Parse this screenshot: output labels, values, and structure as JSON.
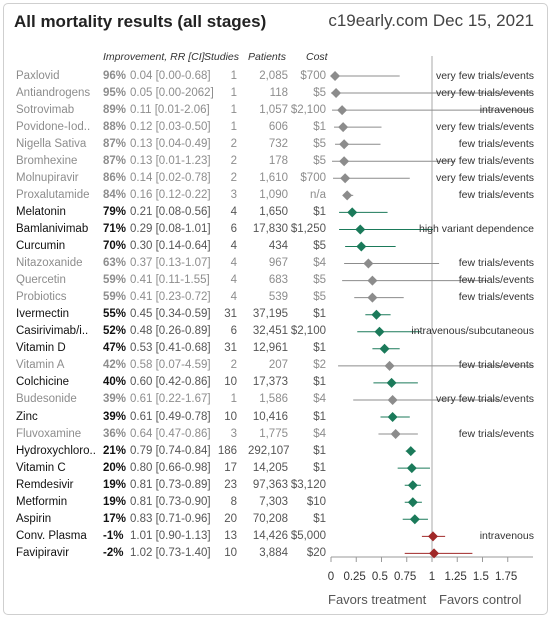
{
  "header": {
    "title": "All mortality results (all stages)",
    "source": "c19early.com Dec 15, 2021"
  },
  "columns": {
    "improvement": "Improvement, RR [CI]",
    "studies": "Studies",
    "patients": "Patients",
    "cost": "Cost"
  },
  "footer": {
    "favors_treatment": "Favors treatment",
    "favors_control": "Favors control"
  },
  "chart_data": {
    "type": "forest",
    "xlim": [
      0,
      1.75
    ],
    "xticks": [
      "0",
      "0.25",
      "0.5",
      "0.75",
      "1",
      "1.25",
      "1.5",
      "1.75"
    ],
    "reference_line": 1,
    "colors": {
      "muted": "#8c8c8c",
      "positive": "#1b7a5a",
      "negative": "#a02828"
    },
    "rows": [
      {
        "name": "Paxlovid",
        "improvement": "96%",
        "rr_text": "0.04 [0.00-0.68]",
        "studies": "1",
        "patients": "2,085",
        "cost": "$700",
        "rr": 0.04,
        "lo": 0.0,
        "hi": 0.68,
        "style": "muted",
        "note": "very few trials/events"
      },
      {
        "name": "Antiandrogens",
        "improvement": "95%",
        "rr_text": "0.05 [0.00-2062]",
        "studies": "1",
        "patients": "118",
        "cost": "$5",
        "rr": 0.05,
        "lo": 0.0,
        "hi": 2062,
        "style": "muted",
        "note": "very few trials/events"
      },
      {
        "name": "Sotrovimab",
        "improvement": "89%",
        "rr_text": "0.11 [0.01-2.06]",
        "studies": "1",
        "patients": "1,057",
        "cost": "$2,100",
        "rr": 0.11,
        "lo": 0.01,
        "hi": 2.06,
        "style": "muted",
        "note": "intravenous"
      },
      {
        "name": "Povidone-Iod..",
        "improvement": "88%",
        "rr_text": "0.12 [0.03-0.50]",
        "studies": "1",
        "patients": "606",
        "cost": "$1",
        "rr": 0.12,
        "lo": 0.03,
        "hi": 0.5,
        "style": "muted",
        "note": "very few trials/events"
      },
      {
        "name": "Nigella Sativa",
        "improvement": "87%",
        "rr_text": "0.13 [0.04-0.49]",
        "studies": "2",
        "patients": "732",
        "cost": "$5",
        "rr": 0.13,
        "lo": 0.04,
        "hi": 0.49,
        "style": "muted",
        "note": "few trials/events"
      },
      {
        "name": "Bromhexine",
        "improvement": "87%",
        "rr_text": "0.13 [0.01-1.23]",
        "studies": "2",
        "patients": "178",
        "cost": "$5",
        "rr": 0.13,
        "lo": 0.01,
        "hi": 1.23,
        "style": "muted",
        "note": "very few trials/events"
      },
      {
        "name": "Molnupiravir",
        "improvement": "86%",
        "rr_text": "0.14 [0.02-0.78]",
        "studies": "2",
        "patients": "1,610",
        "cost": "$700",
        "rr": 0.14,
        "lo": 0.02,
        "hi": 0.78,
        "style": "muted",
        "note": "very few trials/events"
      },
      {
        "name": "Proxalutamide",
        "improvement": "84%",
        "rr_text": "0.16 [0.12-0.22]",
        "studies": "3",
        "patients": "1,090",
        "cost": "n/a",
        "rr": 0.16,
        "lo": 0.12,
        "hi": 0.22,
        "style": "muted",
        "note": "few trials/events"
      },
      {
        "name": "Melatonin",
        "improvement": "79%",
        "rr_text": "0.21 [0.08-0.56]",
        "studies": "4",
        "patients": "1,650",
        "cost": "$1",
        "rr": 0.21,
        "lo": 0.08,
        "hi": 0.56,
        "style": "positive",
        "note": ""
      },
      {
        "name": "Bamlanivimab",
        "improvement": "71%",
        "rr_text": "0.29 [0.08-1.01]",
        "studies": "6",
        "patients": "17,830",
        "cost": "$1,250",
        "rr": 0.29,
        "lo": 0.08,
        "hi": 1.01,
        "style": "positive",
        "note": "high variant dependence"
      },
      {
        "name": "Curcumin",
        "improvement": "70%",
        "rr_text": "0.30 [0.14-0.64]",
        "studies": "4",
        "patients": "434",
        "cost": "$5",
        "rr": 0.3,
        "lo": 0.14,
        "hi": 0.64,
        "style": "positive",
        "note": ""
      },
      {
        "name": "Nitazoxanide",
        "improvement": "63%",
        "rr_text": "0.37 [0.13-1.07]",
        "studies": "4",
        "patients": "967",
        "cost": "$4",
        "rr": 0.37,
        "lo": 0.13,
        "hi": 1.07,
        "style": "muted",
        "note": "few trials/events"
      },
      {
        "name": "Quercetin",
        "improvement": "59%",
        "rr_text": "0.41 [0.11-1.55]",
        "studies": "4",
        "patients": "683",
        "cost": "$5",
        "rr": 0.41,
        "lo": 0.11,
        "hi": 1.55,
        "style": "muted",
        "note": "few trials/events"
      },
      {
        "name": "Probiotics",
        "improvement": "59%",
        "rr_text": "0.41 [0.23-0.72]",
        "studies": "4",
        "patients": "539",
        "cost": "$5",
        "rr": 0.41,
        "lo": 0.23,
        "hi": 0.72,
        "style": "muted",
        "note": "few trials/events"
      },
      {
        "name": "Ivermectin",
        "improvement": "55%",
        "rr_text": "0.45 [0.34-0.59]",
        "studies": "31",
        "patients": "37,195",
        "cost": "$1",
        "rr": 0.45,
        "lo": 0.34,
        "hi": 0.59,
        "style": "positive",
        "note": ""
      },
      {
        "name": "Casirivimab/i..",
        "improvement": "52%",
        "rr_text": "0.48 [0.26-0.89]",
        "studies": "6",
        "patients": "32,451",
        "cost": "$2,100",
        "rr": 0.48,
        "lo": 0.26,
        "hi": 0.89,
        "style": "positive",
        "note": "intravenous/subcutaneous"
      },
      {
        "name": "Vitamin D",
        "improvement": "47%",
        "rr_text": "0.53 [0.41-0.68]",
        "studies": "31",
        "patients": "12,961",
        "cost": "$1",
        "rr": 0.53,
        "lo": 0.41,
        "hi": 0.68,
        "style": "positive",
        "note": ""
      },
      {
        "name": "Vitamin A",
        "improvement": "42%",
        "rr_text": "0.58 [0.07-4.59]",
        "studies": "2",
        "patients": "207",
        "cost": "$2",
        "rr": 0.58,
        "lo": 0.07,
        "hi": 4.59,
        "style": "muted",
        "note": "few trials/events"
      },
      {
        "name": "Colchicine",
        "improvement": "40%",
        "rr_text": "0.60 [0.42-0.86]",
        "studies": "10",
        "patients": "17,373",
        "cost": "$1",
        "rr": 0.6,
        "lo": 0.42,
        "hi": 0.86,
        "style": "positive",
        "note": ""
      },
      {
        "name": "Budesonide",
        "improvement": "39%",
        "rr_text": "0.61 [0.22-1.67]",
        "studies": "1",
        "patients": "1,586",
        "cost": "$4",
        "rr": 0.61,
        "lo": 0.22,
        "hi": 1.67,
        "style": "muted",
        "note": "very few trials/events"
      },
      {
        "name": "Zinc",
        "improvement": "39%",
        "rr_text": "0.61 [0.49-0.78]",
        "studies": "10",
        "patients": "10,416",
        "cost": "$1",
        "rr": 0.61,
        "lo": 0.49,
        "hi": 0.78,
        "style": "positive",
        "note": ""
      },
      {
        "name": "Fluvoxamine",
        "improvement": "36%",
        "rr_text": "0.64 [0.47-0.86]",
        "studies": "3",
        "patients": "1,775",
        "cost": "$4",
        "rr": 0.64,
        "lo": 0.47,
        "hi": 0.86,
        "style": "muted",
        "note": "few trials/events"
      },
      {
        "name": "Hydroxychloro..",
        "improvement": "21%",
        "rr_text": "0.79 [0.74-0.84]",
        "studies": "186",
        "patients": "292,107",
        "cost": "$1",
        "rr": 0.79,
        "lo": 0.74,
        "hi": 0.84,
        "style": "positive",
        "note": ""
      },
      {
        "name": "Vitamin C",
        "improvement": "20%",
        "rr_text": "0.80 [0.66-0.98]",
        "studies": "17",
        "patients": "14,205",
        "cost": "$1",
        "rr": 0.8,
        "lo": 0.66,
        "hi": 0.98,
        "style": "positive",
        "note": ""
      },
      {
        "name": "Remdesivir",
        "improvement": "19%",
        "rr_text": "0.81 [0.73-0.89]",
        "studies": "23",
        "patients": "97,363",
        "cost": "$3,120",
        "rr": 0.81,
        "lo": 0.73,
        "hi": 0.89,
        "style": "positive",
        "note": ""
      },
      {
        "name": "Metformin",
        "improvement": "19%",
        "rr_text": "0.81 [0.73-0.90]",
        "studies": "8",
        "patients": "7,303",
        "cost": "$10",
        "rr": 0.81,
        "lo": 0.73,
        "hi": 0.9,
        "style": "positive",
        "note": ""
      },
      {
        "name": "Aspirin",
        "improvement": "17%",
        "rr_text": "0.83 [0.71-0.96]",
        "studies": "20",
        "patients": "70,208",
        "cost": "$1",
        "rr": 0.83,
        "lo": 0.71,
        "hi": 0.96,
        "style": "positive",
        "note": ""
      },
      {
        "name": "Conv. Plasma",
        "improvement": "-1%",
        "rr_text": "1.01 [0.90-1.13]",
        "studies": "13",
        "patients": "14,426",
        "cost": "$5,000",
        "rr": 1.01,
        "lo": 0.9,
        "hi": 1.13,
        "style": "negative",
        "note": "intravenous"
      },
      {
        "name": "Favipiravir",
        "improvement": "-2%",
        "rr_text": "1.02 [0.73-1.40]",
        "studies": "10",
        "patients": "3,884",
        "cost": "$20",
        "rr": 1.02,
        "lo": 0.73,
        "hi": 1.4,
        "style": "negative",
        "note": ""
      }
    ]
  }
}
